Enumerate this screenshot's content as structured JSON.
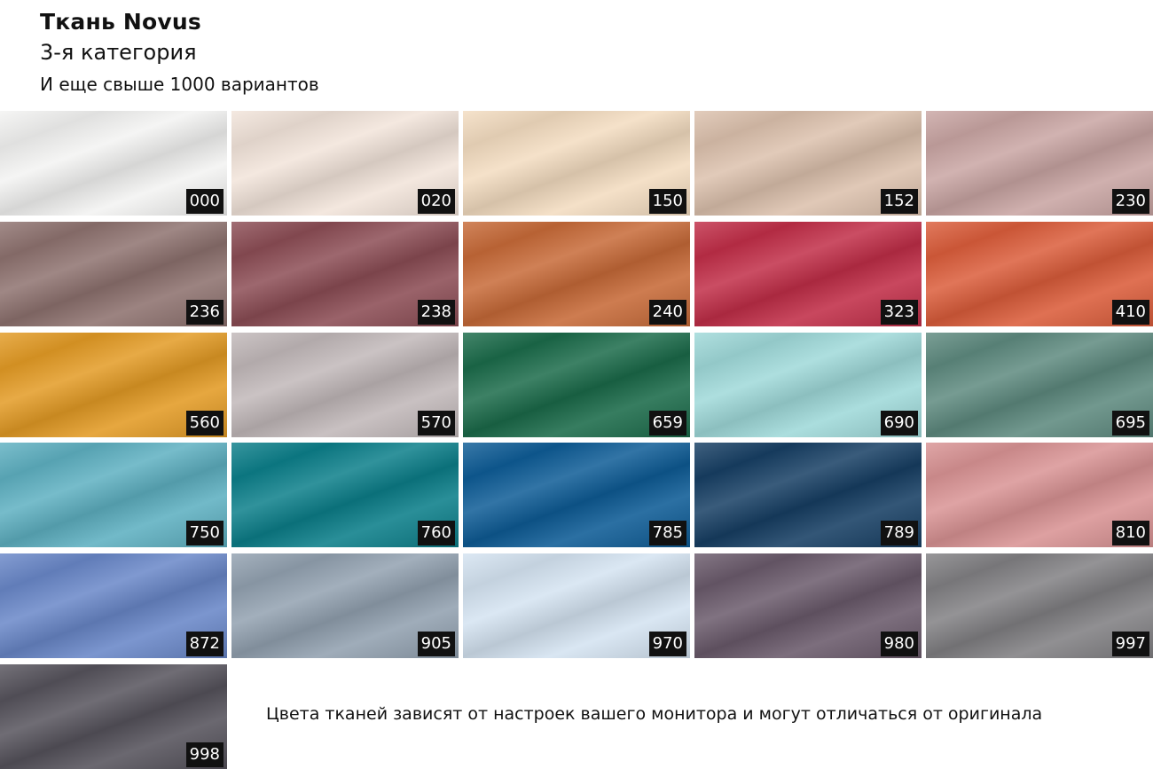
{
  "header": {
    "title": "Ткань Novus",
    "category": "3-я категория",
    "more": "И еще свыше 1000 вариантов"
  },
  "swatches": [
    {
      "code": "000",
      "color": "#f3f3f2"
    },
    {
      "code": "020",
      "color": "#f2e4da"
    },
    {
      "code": "150",
      "color": "#f3dcc0"
    },
    {
      "code": "152",
      "color": "#dcc1ad"
    },
    {
      "code": "230",
      "color": "#c9a5a3"
    },
    {
      "code": "236",
      "color": "#8e726f"
    },
    {
      "code": "238",
      "color": "#8c4d55"
    },
    {
      "code": "240",
      "color": "#c76a38"
    },
    {
      "code": "323",
      "color": "#c12e48"
    },
    {
      "code": "410",
      "color": "#db5d3b"
    },
    {
      "code": "560",
      "color": "#e39b25"
    },
    {
      "code": "570",
      "color": "#c1b8b9"
    },
    {
      "code": "659",
      "color": "#1b6b4a"
    },
    {
      "code": "690",
      "color": "#9fd9d9"
    },
    {
      "code": "695",
      "color": "#5e8a7f"
    },
    {
      "code": "750",
      "color": "#5eb0c1"
    },
    {
      "code": "760",
      "color": "#0c7f8a"
    },
    {
      "code": "785",
      "color": "#0e5c96"
    },
    {
      "code": "789",
      "color": "#173f64"
    },
    {
      "code": "810",
      "color": "#d99394"
    },
    {
      "code": "872",
      "color": "#6987c8"
    },
    {
      "code": "905",
      "color": "#92a1b0"
    },
    {
      "code": "970",
      "color": "#d4e3f1"
    },
    {
      "code": "980",
      "color": "#6a5a6b"
    },
    {
      "code": "997",
      "color": "#818083"
    },
    {
      "code": "998",
      "color": "#56535c"
    }
  ],
  "note": "Цвета тканей зависят от настроек вашего монитора и могут отличаться от оригинала"
}
